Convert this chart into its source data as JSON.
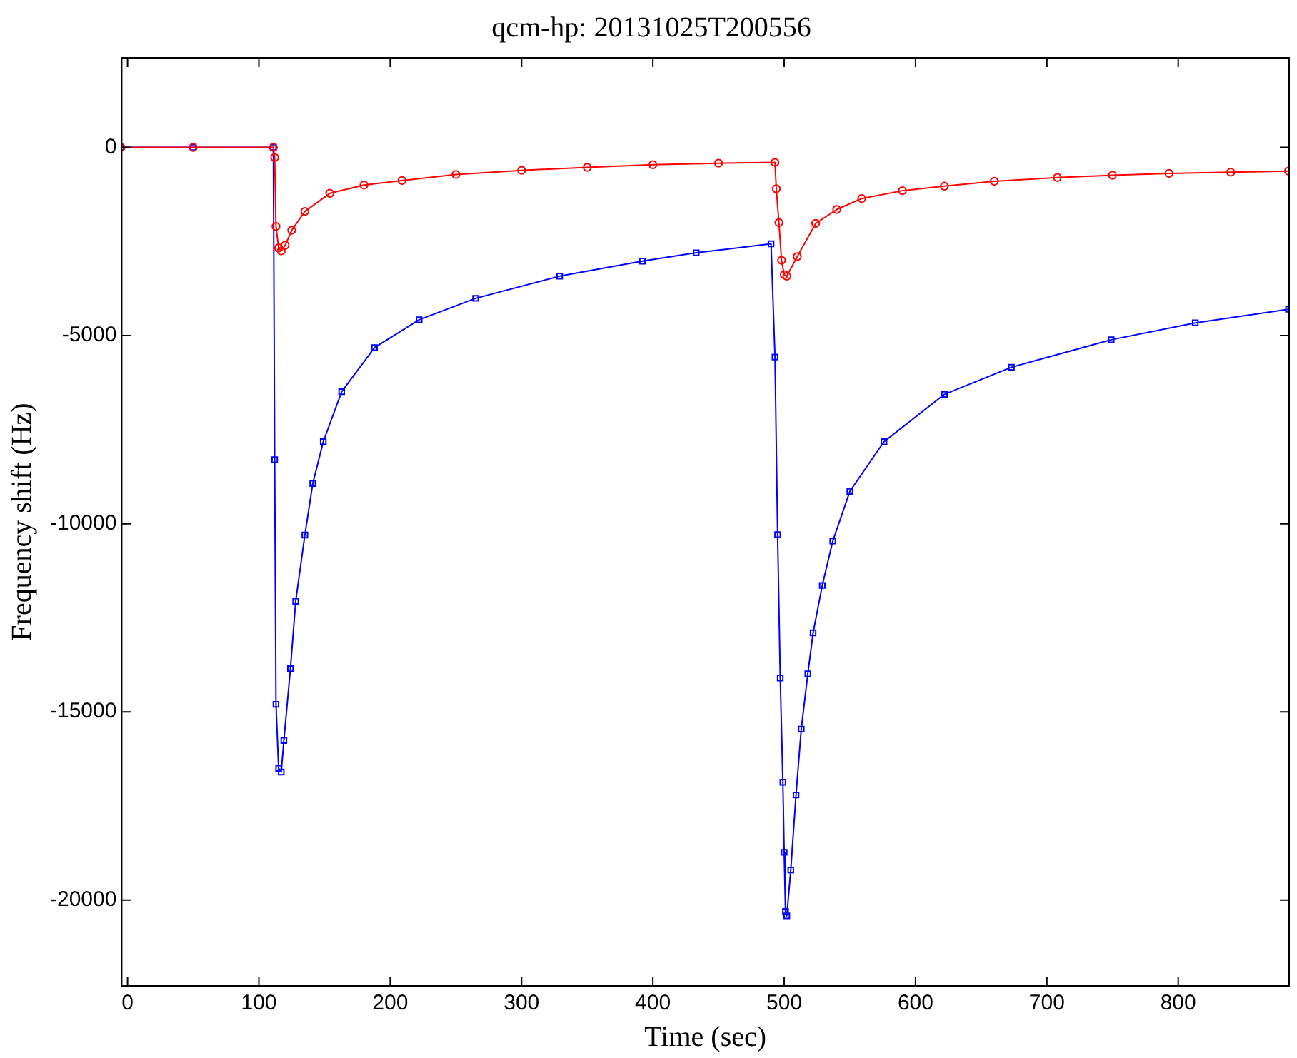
{
  "chart_data": {
    "type": "line",
    "title": "qcm-hp: 20131025T200556",
    "xlabel": "Time (sec)",
    "ylabel": "Frequency shift (Hz)",
    "xlim": [
      -5,
      885
    ],
    "xticks": [
      0,
      100,
      200,
      300,
      400,
      500,
      600,
      700,
      800
    ],
    "ylim": [
      -22300,
      2400
    ],
    "yticks": [
      -20000,
      -15000,
      -10000,
      -5000,
      0
    ],
    "grid": false,
    "legend": false,
    "line_style": "solid",
    "series": [
      {
        "color": "#ff0000",
        "marker": "circle",
        "x": [
          -5,
          50,
          111,
          112,
          113,
          115,
          117,
          120,
          125,
          135,
          154,
          180,
          209,
          250,
          300,
          350,
          400,
          450,
          493,
          494,
          496,
          498,
          500,
          502,
          510,
          524,
          540,
          559,
          590,
          622,
          660,
          708,
          750,
          793,
          840,
          884
        ],
        "values": [
          0,
          0,
          0,
          -270,
          -2100,
          -2670,
          -2750,
          -2600,
          -2200,
          -1700,
          -1220,
          -1000,
          -880,
          -720,
          -610,
          -530,
          -460,
          -420,
          -400,
          -1100,
          -2000,
          -3000,
          -3380,
          -3420,
          -2900,
          -2020,
          -1650,
          -1360,
          -1150,
          -1030,
          -900,
          -800,
          -740,
          -690,
          -660,
          -630
        ]
      },
      {
        "color": "#0000ff",
        "marker": "square",
        "x": [
          -5,
          50,
          111,
          112,
          113,
          115,
          117,
          119,
          124,
          128,
          135,
          141,
          149,
          163,
          188,
          222,
          265,
          329,
          392,
          433,
          490,
          493,
          495,
          497,
          499,
          500,
          501,
          502,
          505,
          509,
          513,
          518,
          522,
          529,
          537,
          550,
          576,
          622,
          673,
          749,
          813,
          884
        ],
        "values": [
          0,
          0,
          0,
          -8300,
          -14800,
          -16500,
          -16600,
          -15760,
          -13850,
          -12060,
          -10300,
          -8930,
          -7820,
          -6490,
          -5320,
          -4580,
          -4010,
          -3420,
          -3020,
          -2800,
          -2560,
          -5570,
          -10290,
          -14100,
          -16870,
          -18730,
          -20300,
          -20420,
          -19200,
          -17210,
          -15460,
          -13990,
          -12900,
          -11640,
          -10460,
          -9140,
          -7820,
          -6560,
          -5840,
          -5110,
          -4660,
          -4300
        ]
      }
    ]
  }
}
